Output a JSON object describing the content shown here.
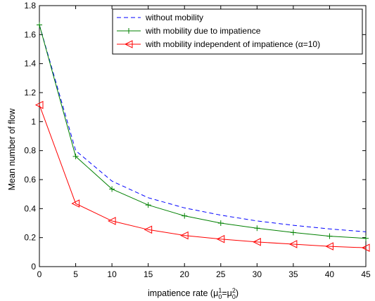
{
  "chart_data": {
    "type": "line",
    "xlabel": "impatience rate (μ",
    "xlabel_parts": {
      "prefix": "impatience rate (μ",
      "sup1": "1",
      "sub1": "0",
      "eq": "=μ",
      "sup2": "2",
      "sub2": "0",
      "suffix": ")"
    },
    "ylabel": "Mean number of flow",
    "xlim": [
      0,
      45
    ],
    "ylim": [
      0,
      1.8
    ],
    "xticks": [
      0,
      5,
      10,
      15,
      20,
      25,
      30,
      35,
      40,
      45
    ],
    "yticks": [
      0,
      0.2,
      0.4,
      0.6,
      0.8,
      1,
      1.2,
      1.4,
      1.6,
      1.8
    ],
    "ytick_labels": [
      "0",
      "0.2",
      "0.4",
      "0.6",
      "0.8",
      "1",
      "1.2",
      "1.4",
      "1.6",
      "1.8"
    ],
    "grid": false,
    "legend_position": "top-right",
    "x": [
      0,
      5,
      10,
      15,
      20,
      25,
      30,
      35,
      40,
      45
    ],
    "series": [
      {
        "name": "without mobility",
        "color": "#0000ff",
        "style": "dashed",
        "marker": "none",
        "values": [
          1.667,
          0.8,
          0.59,
          0.475,
          0.405,
          0.355,
          0.315,
          0.285,
          0.26,
          0.24
        ]
      },
      {
        "name": "with mobility due to impatience",
        "color": "#008000",
        "style": "solid",
        "marker": "plus",
        "values": [
          1.667,
          0.76,
          0.535,
          0.425,
          0.35,
          0.3,
          0.265,
          0.235,
          0.21,
          0.195
        ]
      },
      {
        "name": "with mobility independent of impatience (α=10)",
        "color": "#ff0000",
        "style": "solid",
        "marker": "triangle-left",
        "values": [
          1.115,
          0.435,
          0.315,
          0.255,
          0.215,
          0.19,
          0.17,
          0.155,
          0.14,
          0.13
        ]
      }
    ]
  }
}
